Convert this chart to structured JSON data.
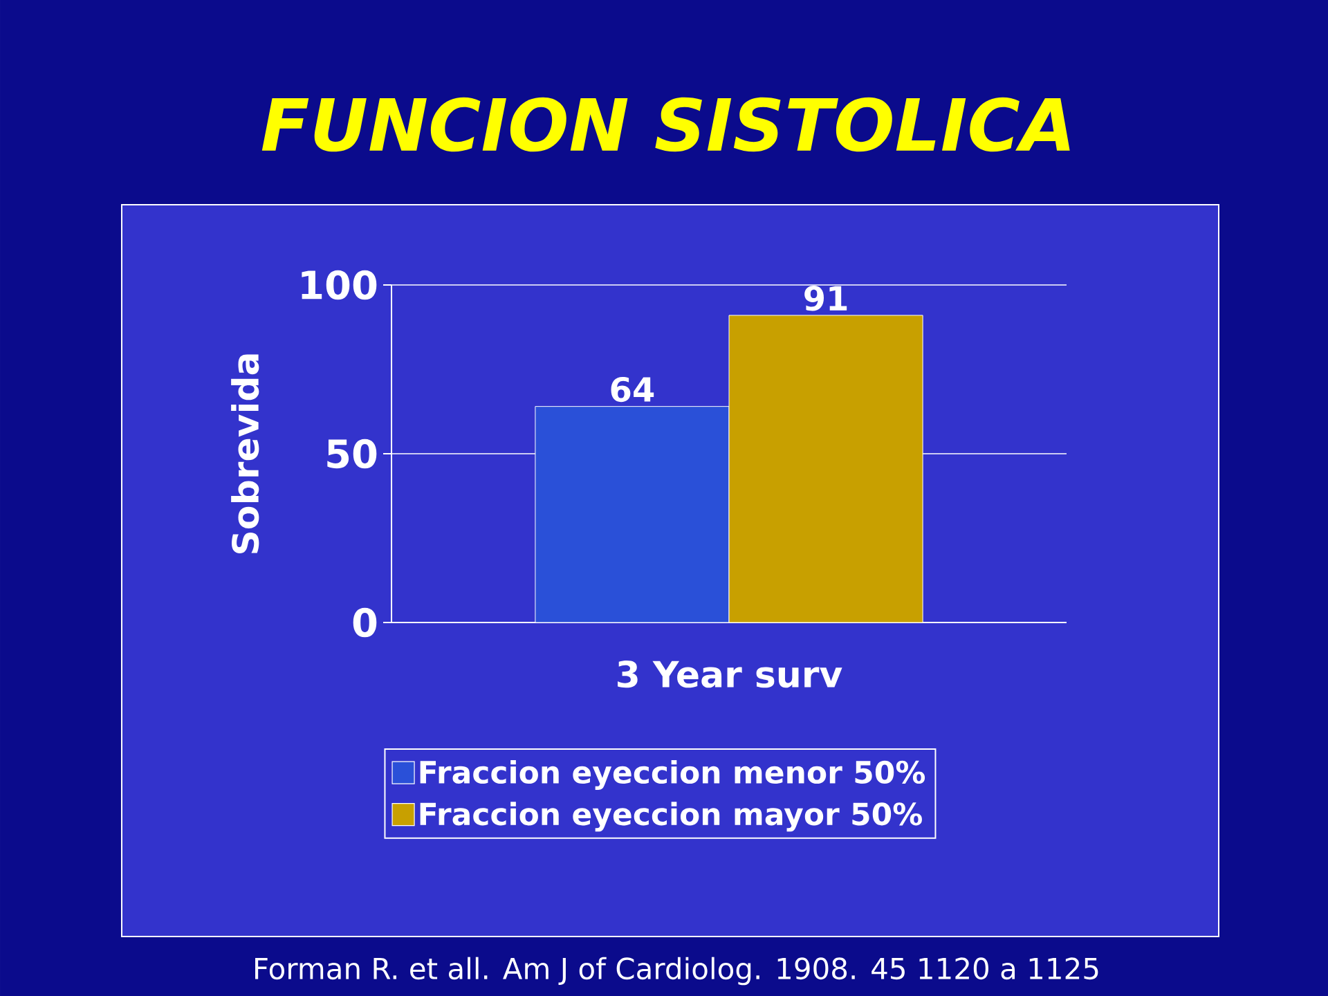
{
  "chart_data": {
    "type": "bar",
    "title": "FUNCION SISTOLICA",
    "ylabel": "Sobrevida",
    "categories": [
      "3 Year surv"
    ],
    "series": [
      {
        "name": "Fraccion eyeccion menor 50%",
        "color": "#2a50d8",
        "values": [
          64
        ]
      },
      {
        "name": "Fraccion eyeccion mayor 50%",
        "color": "#c8a000",
        "values": [
          91
        ]
      }
    ],
    "ylim": [
      0,
      100
    ],
    "yticks": [
      0,
      50,
      100
    ],
    "grid": "y",
    "legend": "bottom",
    "data_labels": true,
    "annotations": [
      "Forman R. et all.   Am J of Cardiolog.  1908.  45  1120 a 1125"
    ]
  }
}
